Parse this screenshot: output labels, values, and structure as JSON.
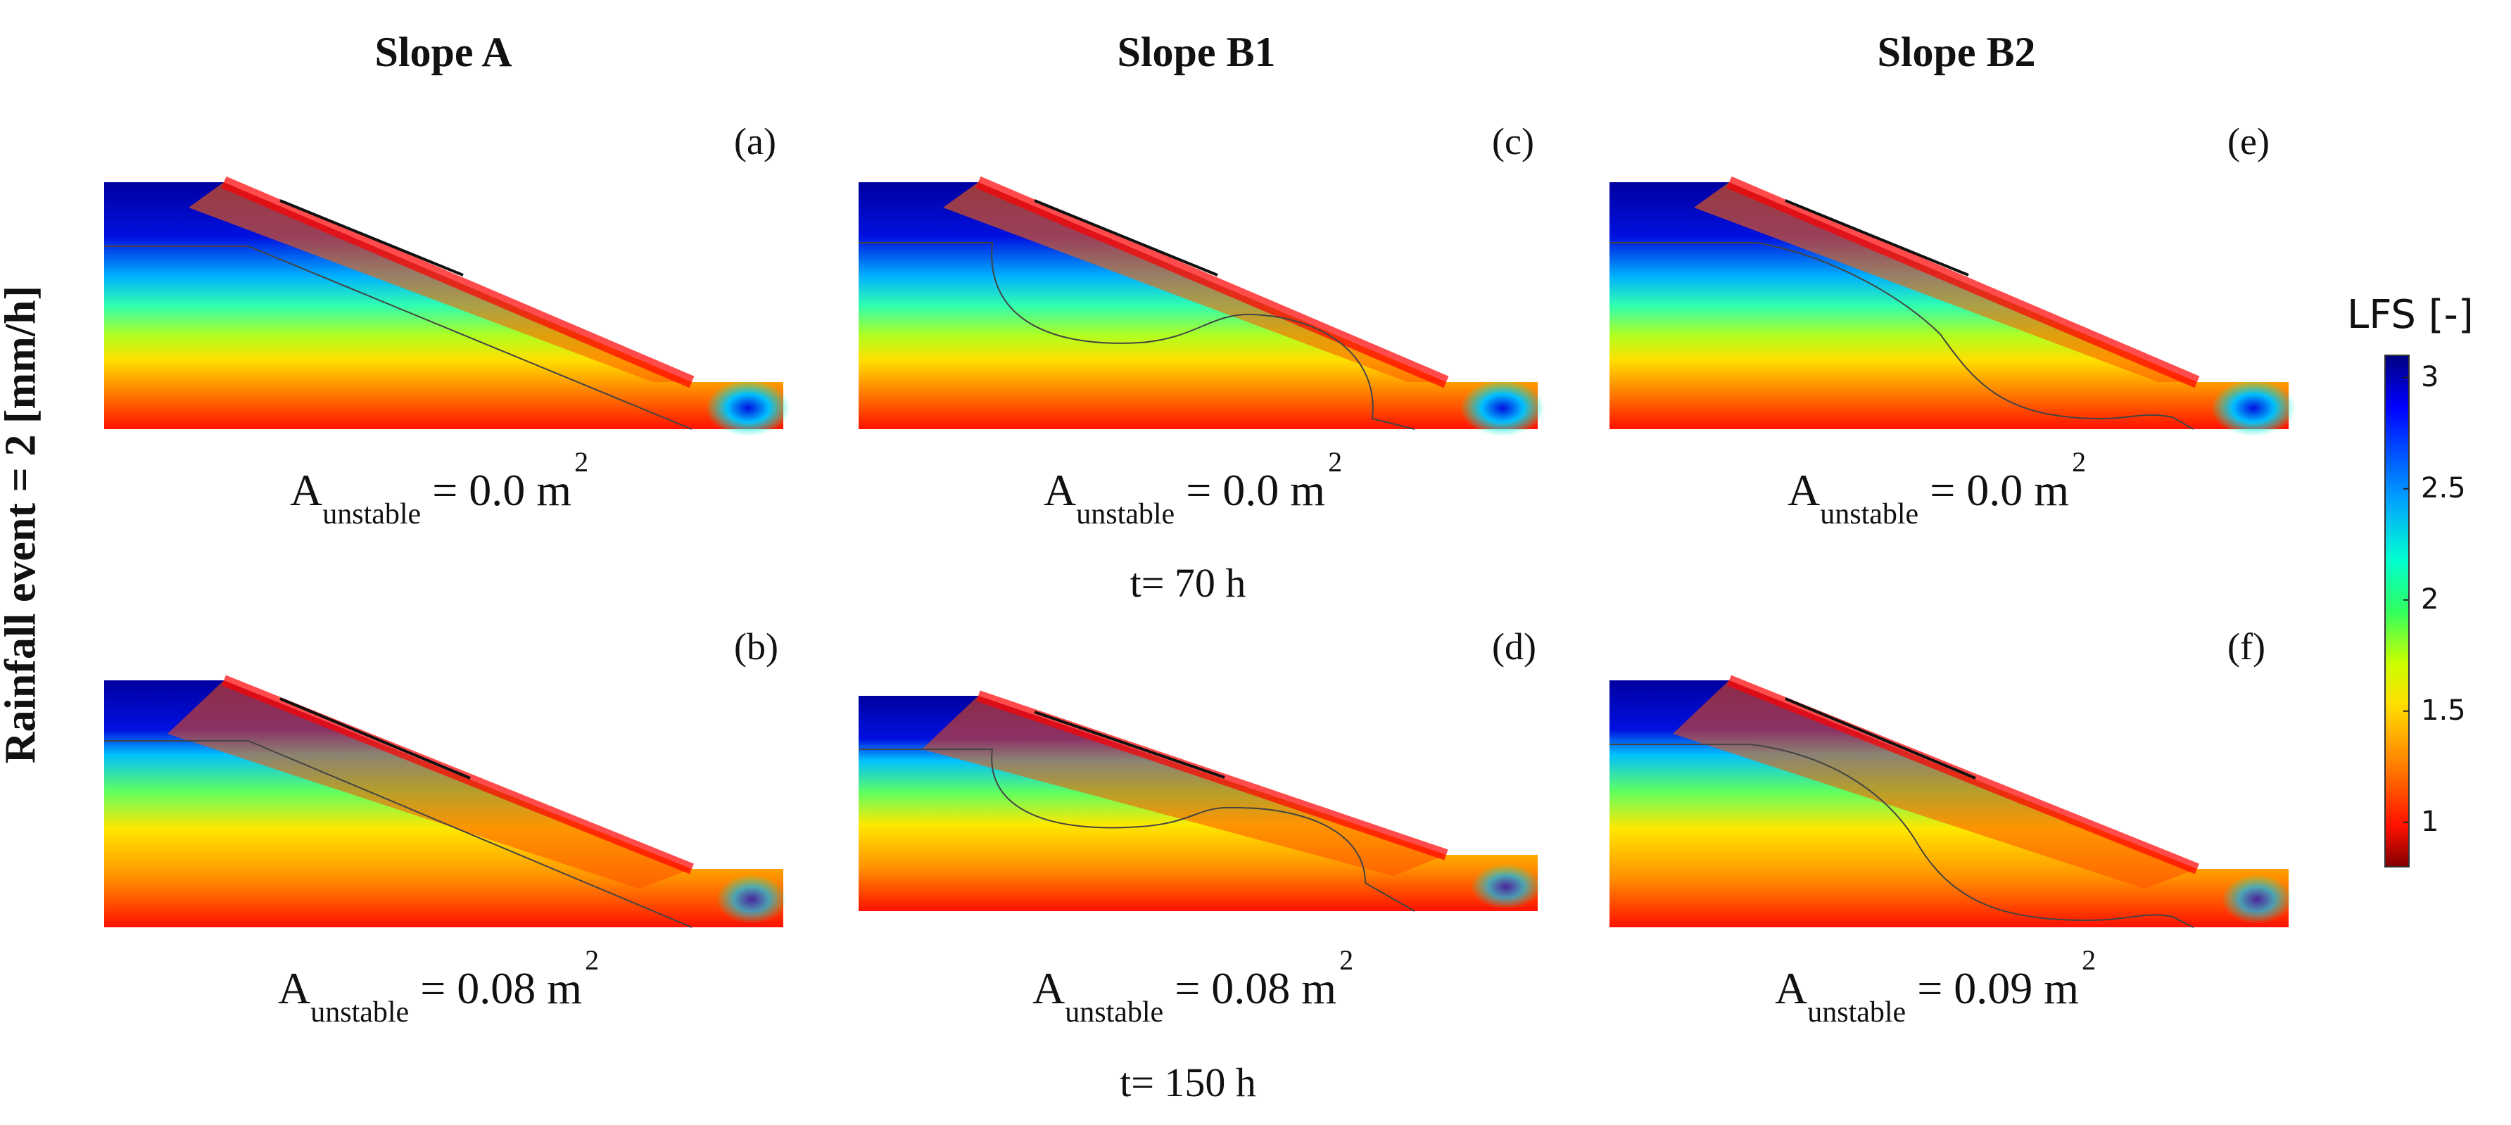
{
  "columns": [
    "Slope A",
    "Slope B1",
    "Slope B2"
  ],
  "row_title": "Rainfall event = 2 [mm/h]",
  "times": [
    "t= 70 h",
    "t= 150 h"
  ],
  "panels": [
    {
      "label": "(a)",
      "area_prefix": "A",
      "area_sub": "unstable",
      "area_value": "= 0.0 m",
      "area_sup": "2",
      "slope": "A",
      "time": "t= 70 h"
    },
    {
      "label": "(b)",
      "area_prefix": "A",
      "area_sub": "unstable",
      "area_value": "= 0.08 m",
      "area_sup": "2",
      "slope": "A",
      "time": "t= 150 h"
    },
    {
      "label": "(c)",
      "area_prefix": "A",
      "area_sub": "unstable",
      "area_value": "= 0.0 m",
      "area_sup": "2",
      "slope": "B1",
      "time": "t= 70 h"
    },
    {
      "label": "(d)",
      "area_prefix": "A",
      "area_sub": "unstable",
      "area_value": "= 0.08 m",
      "area_sup": "2",
      "slope": "B1",
      "time": "t= 150 h"
    },
    {
      "label": "(e)",
      "area_prefix": "A",
      "area_sub": "unstable",
      "area_value": "= 0.0 m",
      "area_sup": "2",
      "slope": "B2",
      "time": "t= 70 h"
    },
    {
      "label": "(f)",
      "area_prefix": "A",
      "area_sub": "unstable",
      "area_value": "= 0.09 m",
      "area_sup": "2",
      "slope": "B2",
      "time": "t= 150 h"
    }
  ],
  "colorbar": {
    "title": "LFS [-]",
    "ticks": [
      "3",
      "2.5",
      "2",
      "1.5",
      "1"
    ],
    "range": [
      0.8,
      3.1
    ],
    "colors": [
      "#00007f",
      "#0000ff",
      "#00a0ff",
      "#00ffd0",
      "#30ff60",
      "#c8ff00",
      "#ffe000",
      "#ff8000",
      "#ff1000",
      "#800000"
    ]
  }
}
